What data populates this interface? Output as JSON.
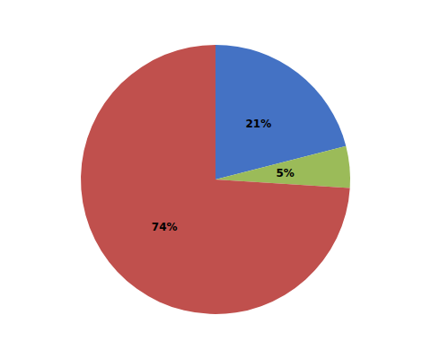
{
  "chart_data": {
    "type": "pie",
    "values": [
      21,
      5,
      74
    ],
    "value_labels": [
      "21%",
      "5%",
      "74%"
    ],
    "colors": [
      "#4472C4",
      "#9BBB59",
      "#C0504D"
    ],
    "data_labels": true
  }
}
